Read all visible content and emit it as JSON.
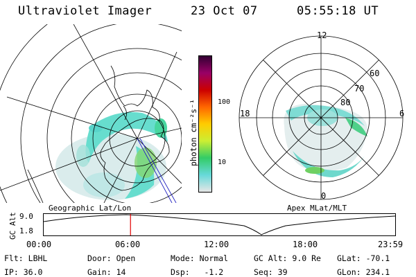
{
  "header": {
    "instrument": "Ultraviolet Imager",
    "date": "23 Oct 07",
    "time": "05:55:18 UT"
  },
  "left_panel": {
    "title": "Geographic Lat/Lon"
  },
  "right_panel": {
    "title": "Apex MLat/MLT",
    "hour_labels": {
      "top": "12",
      "left": "18",
      "right": "6",
      "bottom": "0"
    },
    "lat_labels": [
      "60",
      "70",
      "80"
    ]
  },
  "colorbar": {
    "unit": "photon cm⁻²s⁻¹",
    "ticks": [
      "100",
      "10"
    ],
    "scale": "log",
    "colors": [
      "#e6e6e6",
      "#66d9d9",
      "#33cc66",
      "#ccee33",
      "#ffcc00",
      "#ff6600",
      "#cc0000",
      "#990066",
      "#330033"
    ]
  },
  "timeline": {
    "ylabel": "GC Alt",
    "y_ticks": [
      "9.0",
      "1.8"
    ],
    "x_ticks": [
      "00:00",
      "06:00",
      "12:00",
      "18:00",
      "23:59"
    ],
    "current_time_fraction": 0.247
  },
  "params": {
    "filter_label": "Flt:",
    "filter": "LBHL",
    "ip_label": "IP:",
    "ip": "36.0",
    "door_label": "Door:",
    "door": "Open",
    "gain_label": "Gain:",
    "gain": "14",
    "mode_label": "Mode:",
    "mode": "Normal",
    "dsp_label": "Dsp:",
    "dsp": "-1.2",
    "gcalt_label": "GC Alt:",
    "gcalt": "9.0 Re",
    "seq_label": "Seq:",
    "seq": "39",
    "glat_label": "GLat:",
    "glat": "-70.1",
    "glon_label": "GLon:",
    "glon": "234.1"
  }
}
